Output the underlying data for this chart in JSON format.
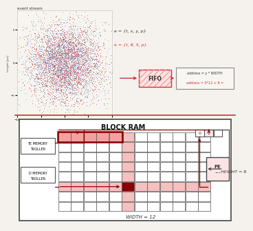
{
  "scatter_n": 5000,
  "scatter_seed": 42,
  "eq1": "e = {t, x, y, p}",
  "eq2": "e = {t, 8, 5, p}",
  "fifo_label": "FIFO",
  "addr_line1": "address = y * WIDTH",
  "addr_line2": "address = 5*12 + 8 =",
  "block_ram_title": "BLOCK RAM",
  "width_label": "WIDTH = 12",
  "height_label": "HEIGHT = 8",
  "grid_cols": 12,
  "grid_rows": 8,
  "highlight_row": 2,
  "highlight_col": 5,
  "color_pink": "#f4a0a0",
  "color_dark_red": "#8b0000",
  "color_red": "#cc3333",
  "color_mid_red": "#c06060",
  "color_light_pink": "#fce4e4",
  "color_blue": "#7799cc",
  "bg_color": "#f5f2ee",
  "register_vals": [
    "0",
    "1",
    ""
  ],
  "write_ctrl_label": [
    "TE MEMORY",
    "TROLLER"
  ],
  "read_ctrl_label": [
    "D MEMORY",
    "TROLLER"
  ]
}
